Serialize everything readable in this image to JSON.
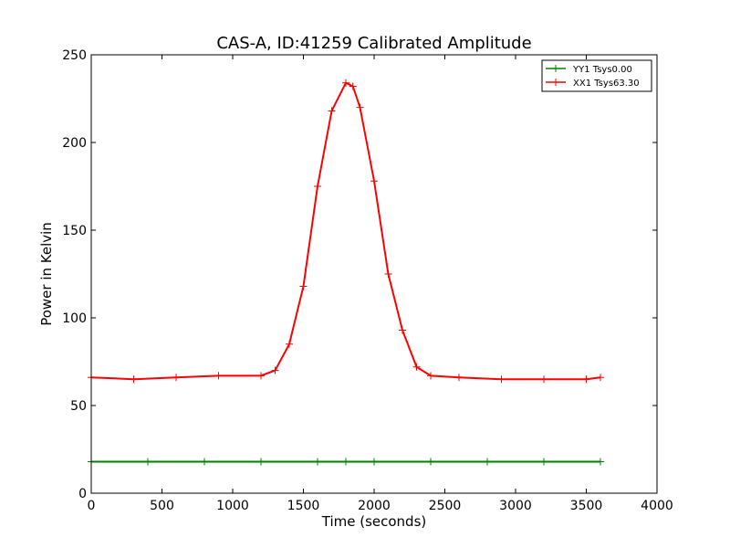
{
  "chart_data": {
    "type": "line",
    "title": "CAS-A, ID:41259 Calibrated Amplitude",
    "xlabel": "Time (seconds)",
    "ylabel": "Power in Kelvin",
    "xlim": [
      0,
      4000
    ],
    "ylim": [
      0,
      250
    ],
    "xticks": [
      "0",
      "500",
      "1000",
      "1500",
      "2000",
      "2500",
      "3000",
      "3500",
      "4000"
    ],
    "yticks": [
      "0",
      "50",
      "100",
      "150",
      "200",
      "250"
    ],
    "grid": false,
    "legend_position": "top-right",
    "series": [
      {
        "name": "YY1 Tsys0.00",
        "color": "#008000",
        "marker": "+",
        "x": [
          0,
          400,
          800,
          1200,
          1600,
          1800,
          2000,
          2400,
          2800,
          3200,
          3600
        ],
        "y": [
          18,
          18,
          18,
          18,
          18,
          18,
          18,
          18,
          18,
          18,
          18
        ]
      },
      {
        "name": "XX1 Tsys63.30",
        "color": "#ff0000",
        "marker": "+",
        "x": [
          0,
          300,
          600,
          900,
          1200,
          1300,
          1400,
          1500,
          1600,
          1700,
          1800,
          1850,
          1900,
          2000,
          2100,
          2200,
          2300,
          2400,
          2600,
          2900,
          3200,
          3500,
          3600
        ],
        "y": [
          66,
          65,
          66,
          67,
          67,
          70,
          85,
          118,
          175,
          218,
          234,
          232,
          220,
          178,
          125,
          93,
          72,
          67,
          66,
          65,
          65,
          65,
          66
        ]
      }
    ]
  }
}
